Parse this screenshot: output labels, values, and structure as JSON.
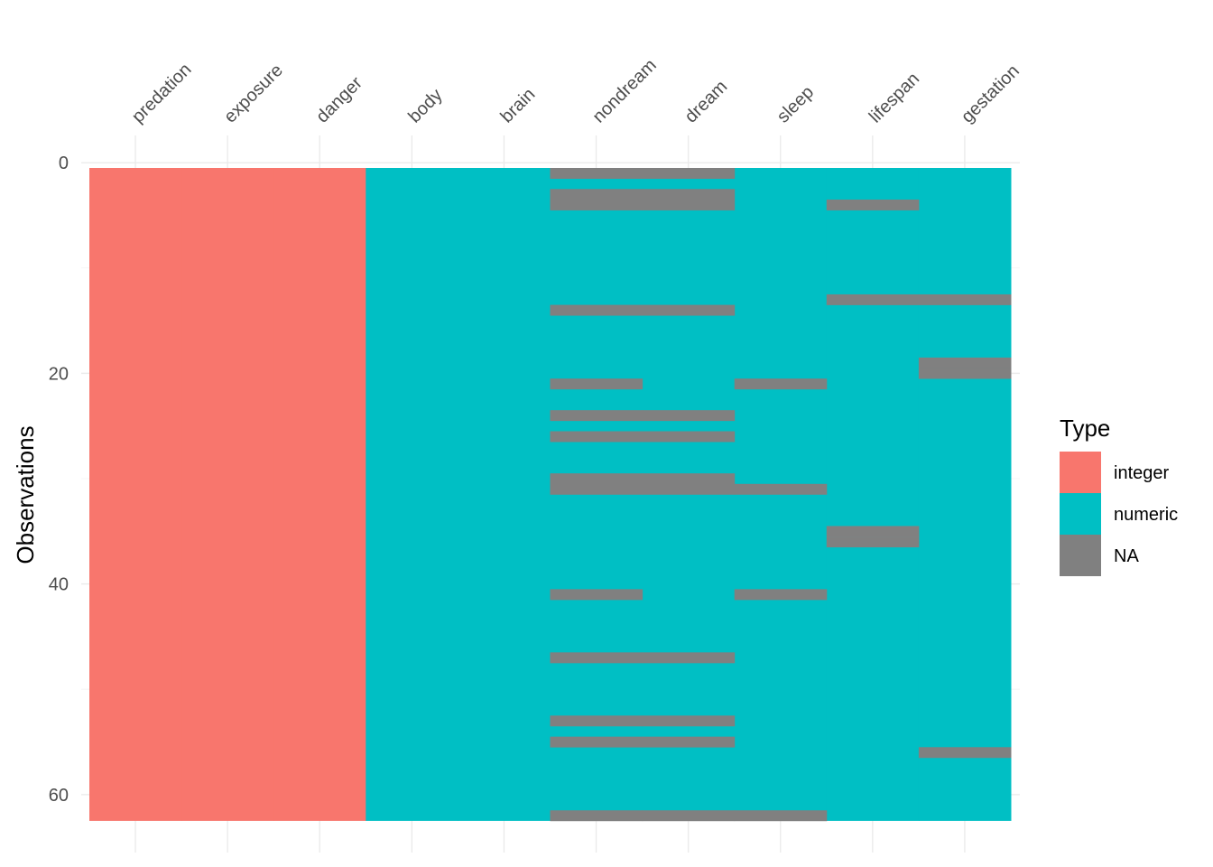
{
  "chart_data": {
    "type": "heatmap",
    "title": "",
    "xlabel": "",
    "ylabel": "Observations",
    "variables": [
      "predation",
      "exposure",
      "danger",
      "body",
      "brain",
      "nondream",
      "dream",
      "sleep",
      "lifespan",
      "gestation"
    ],
    "variable_types": [
      "integer",
      "integer",
      "integer",
      "numeric",
      "numeric",
      "numeric",
      "numeric",
      "numeric",
      "numeric",
      "numeric"
    ],
    "n_observations": 62,
    "ylim": [
      0,
      62
    ],
    "y_ticks": [
      0,
      20,
      40,
      60
    ],
    "y_axis_reversed": true,
    "grid": true,
    "legend": {
      "title": "Type",
      "position": "right",
      "entries": [
        {
          "label": "integer",
          "color": "#F8766D"
        },
        {
          "label": "numeric",
          "color": "#00BFC4"
        },
        {
          "label": "NA",
          "color": "#808080"
        }
      ]
    },
    "missing": [
      {
        "variable": "nondream",
        "rows": [
          1,
          3,
          4,
          14,
          21,
          24,
          26,
          30,
          31,
          41,
          47,
          53,
          55,
          62
        ]
      },
      {
        "variable": "dream",
        "rows": [
          1,
          3,
          4,
          14,
          24,
          26,
          30,
          31,
          47,
          53,
          55,
          62
        ]
      },
      {
        "variable": "sleep",
        "rows": [
          21,
          31,
          41,
          62
        ]
      },
      {
        "variable": "lifespan",
        "rows": [
          4,
          13,
          35,
          36
        ]
      },
      {
        "variable": "gestation",
        "rows": [
          13,
          19,
          20,
          56
        ]
      }
    ]
  }
}
